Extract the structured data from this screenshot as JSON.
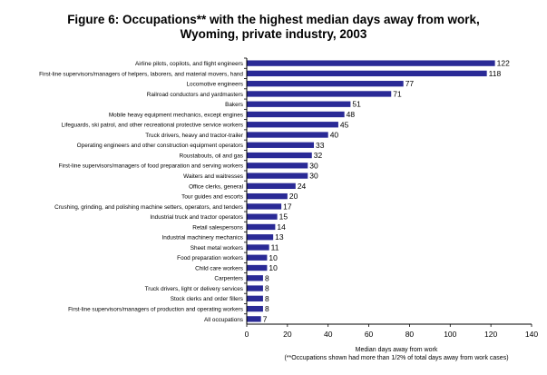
{
  "chart_data": {
    "type": "bar",
    "orientation": "horizontal",
    "title_line1": "Figure 6: Occupations** with the highest median days away from work,",
    "title_line2": "Wyoming, private industry, 2003",
    "xlabel": "Median days away from work",
    "footnote": "(**Occupations shown had more than 1/2% of total days away from work cases)",
    "categories": [
      "Airline pilots, copilots, and flight engineers",
      "First-line supervisors/managers of helpers, laborers, and material movers, hand",
      "Locomotive engineers",
      "Railroad conductors and yardmasters",
      "Bakers",
      "Mobile heavy equipment mechanics, except engines",
      "Lifeguards, ski patrol, and other recreational protective service workers",
      "Truck drivers, heavy and tractor-trailer",
      "Operating engineers and other construction equipment operators",
      "Roustabouts, oil and gas",
      "First-line supervisors/managers of food preparation and serving workers",
      "Waiters and waitresses",
      "Office clerks, general",
      "Tour guides and escorts",
      "Crushing, grinding, and polishing machine setters, operators, and tenders",
      "Industrial truck and tractor operators",
      "Retail salespersons",
      "Industrial machinery mechanics",
      "Sheet metal workers",
      "Food preparation workers",
      "Child care workers",
      "Carpenters",
      "Truck drivers, light or delivery services",
      "Stock clerks and order fillers",
      "First-line supervisors/managers of production and operating workers",
      "All occupations"
    ],
    "values": [
      122,
      118,
      77,
      71,
      51,
      48,
      45,
      40,
      33,
      32,
      30,
      30,
      24,
      20,
      17,
      15,
      14,
      13,
      11,
      10,
      10,
      8,
      8,
      8,
      8,
      7
    ],
    "value_labels": [
      "122",
      "118",
      "77",
      "71",
      "51",
      "48",
      "45",
      "40",
      "33",
      "32",
      "30",
      "30",
      "24",
      "20",
      "17",
      "15",
      "14",
      "13",
      "11",
      "10",
      "10",
      "8",
      "8",
      "8",
      "8",
      "7"
    ],
    "xlim": [
      0,
      140
    ],
    "xticks": [
      0,
      20,
      40,
      60,
      80,
      100,
      120,
      140
    ],
    "xtick_labels": [
      "0",
      "20",
      "40",
      "60",
      "80",
      "100",
      "120",
      "140"
    ],
    "grid": false,
    "legend": "none",
    "bar_color": "#2a2a96"
  }
}
